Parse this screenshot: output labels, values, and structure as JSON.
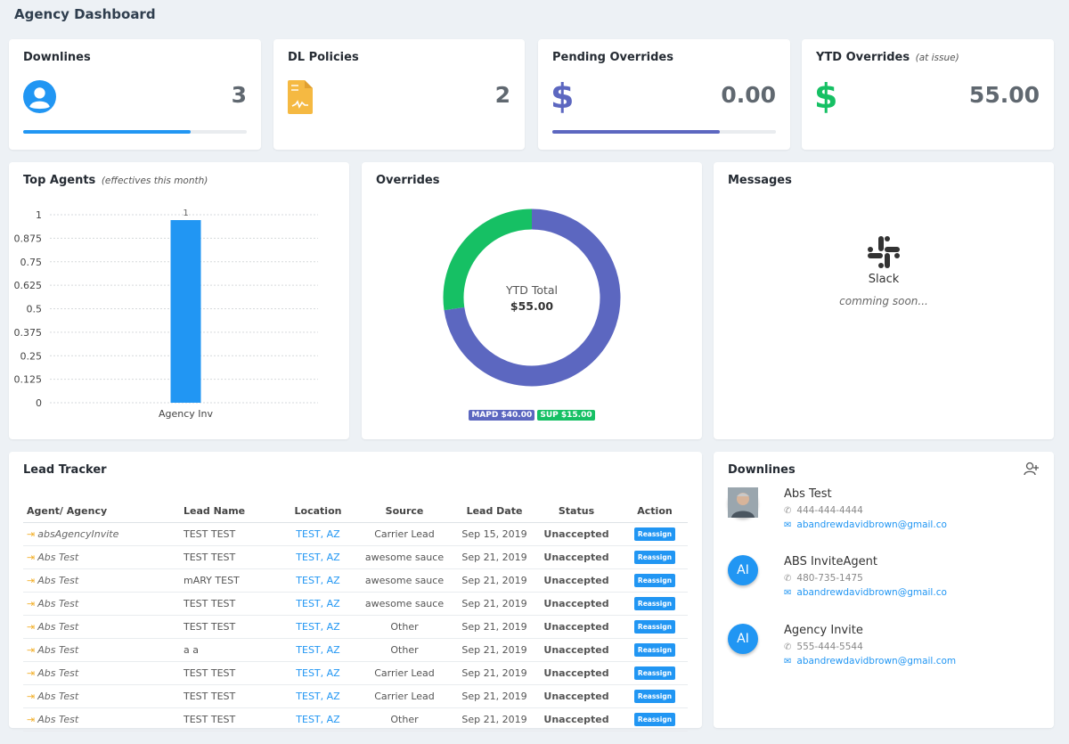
{
  "header": {
    "title": "Agency Dashboard"
  },
  "stats": [
    {
      "title": "Downlines",
      "subtitle": "",
      "value": "3",
      "icon": "user-circle-icon",
      "color": "#2196f3",
      "progress": 0.75
    },
    {
      "title": "DL Policies",
      "subtitle": "",
      "value": "2",
      "icon": "file-contract-icon",
      "color": "#f5b942",
      "progress": null
    },
    {
      "title": "Pending Overrides",
      "subtitle": "",
      "value": "0.00",
      "icon": "dollar-icon",
      "color": "#5c67c0",
      "progress": 0.75
    },
    {
      "title": "YTD Overrides",
      "subtitle": "(at issue)",
      "value": "55.00",
      "icon": "dollar-icon",
      "color": "#16c064",
      "progress": null
    }
  ],
  "top_agents": {
    "title": "Top Agents",
    "subtitle": "(effectives this month)",
    "chart_data": {
      "type": "bar",
      "categories": [
        "Agency Inv"
      ],
      "values": [
        1
      ],
      "data_labels": [
        "1"
      ],
      "ylim": [
        0,
        1
      ],
      "yticks": [
        "0",
        "0.125",
        "0.25",
        "0.375",
        "0.5",
        "0.625",
        "0.75",
        "0.875",
        "1"
      ],
      "grid": true,
      "color": "#2196f3"
    }
  },
  "overrides": {
    "title": "Overrides",
    "center_label": "YTD Total",
    "center_value": "$55.00",
    "chart_data": {
      "type": "pie",
      "categories": [
        "MAPD",
        "SUP"
      ],
      "values": [
        40,
        15
      ],
      "colors": [
        "#5c67c0",
        "#16c064"
      ],
      "legend": [
        "MAPD $40.00",
        "SUP $15.00"
      ]
    }
  },
  "messages": {
    "title": "Messages",
    "app_name": "Slack",
    "note": "comming soon..."
  },
  "lead_tracker": {
    "title": "Lead Tracker",
    "columns": [
      "Agent/ Agency",
      "Lead Name",
      "Location",
      "Source",
      "Lead Date",
      "Status",
      "Action"
    ],
    "rows": [
      {
        "agent": "absAgencyInvite",
        "lead": "TEST TEST",
        "location": "TEST, AZ",
        "source": "Carrier Lead",
        "date": "Sep 15, 2019",
        "status": "Unaccepted",
        "action": "Reassign"
      },
      {
        "agent": "Abs Test",
        "lead": "TEST TEST",
        "location": "TEST, AZ",
        "source": "awesome sauce",
        "date": "Sep 21, 2019",
        "status": "Unaccepted",
        "action": "Reassign"
      },
      {
        "agent": "Abs Test",
        "lead": "mARY TEST",
        "location": "TEST, AZ",
        "source": "awesome sauce",
        "date": "Sep 21, 2019",
        "status": "Unaccepted",
        "action": "Reassign"
      },
      {
        "agent": "Abs Test",
        "lead": "TEST TEST",
        "location": "TEST, AZ",
        "source": "awesome sauce",
        "date": "Sep 21, 2019",
        "status": "Unaccepted",
        "action": "Reassign"
      },
      {
        "agent": "Abs Test",
        "lead": "TEST TEST",
        "location": "TEST, AZ",
        "source": "Other",
        "date": "Sep 21, 2019",
        "status": "Unaccepted",
        "action": "Reassign"
      },
      {
        "agent": "Abs Test",
        "lead": "a a",
        "location": "TEST, AZ",
        "source": "Other",
        "date": "Sep 21, 2019",
        "status": "Unaccepted",
        "action": "Reassign"
      },
      {
        "agent": "Abs Test",
        "lead": "TEST TEST",
        "location": "TEST, AZ",
        "source": "Carrier Lead",
        "date": "Sep 21, 2019",
        "status": "Unaccepted",
        "action": "Reassign"
      },
      {
        "agent": "Abs Test",
        "lead": "TEST TEST",
        "location": "TEST, AZ",
        "source": "Carrier Lead",
        "date": "Sep 21, 2019",
        "status": "Unaccepted",
        "action": "Reassign"
      },
      {
        "agent": "Abs Test",
        "lead": "TEST TEST",
        "location": "TEST, AZ",
        "source": "Other",
        "date": "Sep 21, 2019",
        "status": "Unaccepted",
        "action": "Reassign"
      }
    ]
  },
  "downlines": {
    "title": "Downlines",
    "add_icon": "user-plus-icon",
    "items": [
      {
        "name": "Abs Test",
        "phone": "444-444-4444",
        "email": "abandrewdavidbrown@gmail.co",
        "initials": "",
        "photo": true
      },
      {
        "name": "ABS InviteAgent",
        "phone": "480-735-1475",
        "email": "abandrewdavidbrown@gmail.co",
        "initials": "AI",
        "photo": false
      },
      {
        "name": "Agency Invite",
        "phone": "555-444-5544",
        "email": "abandrewdavidbrown@gmail.com",
        "initials": "AI",
        "photo": false
      }
    ]
  }
}
